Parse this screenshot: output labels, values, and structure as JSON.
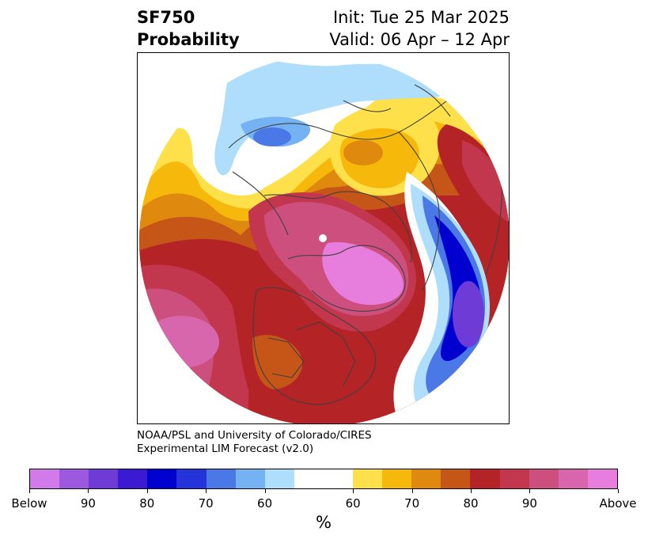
{
  "header": {
    "left_line1": "SF750",
    "left_line2": "Probability",
    "right_line1": "Init: Tue 25 Mar 2025",
    "right_line2": "Valid: 06 Apr – 12 Apr"
  },
  "credit": {
    "line1": "NOAA/PSL and University of Colorado/CIRES",
    "line2": "Experimental LIM Forecast (v2.0)"
  },
  "colorbar": {
    "colors": [
      "#d17ae9",
      "#9d58e0",
      "#6e3bd6",
      "#3b1bd2",
      "#0000cf",
      "#2534d8",
      "#4b78e7",
      "#74b2f3",
      "#aedefb",
      "#ffffff",
      "#ffffff",
      "#fee04a",
      "#f6b80b",
      "#e0890f",
      "#c65518",
      "#b42325",
      "#c2374e",
      "#cd4f7d",
      "#d866ad",
      "#e77ddc"
    ],
    "tick_labels": [
      "Below",
      "90",
      "80",
      "70",
      "60",
      "60",
      "70",
      "80",
      "90",
      "Above"
    ],
    "unit": "%"
  },
  "map": {
    "projection": "polar-stereographic",
    "palette": {
      "ocean_bg": "#ffffff",
      "coast": "#404040"
    }
  }
}
